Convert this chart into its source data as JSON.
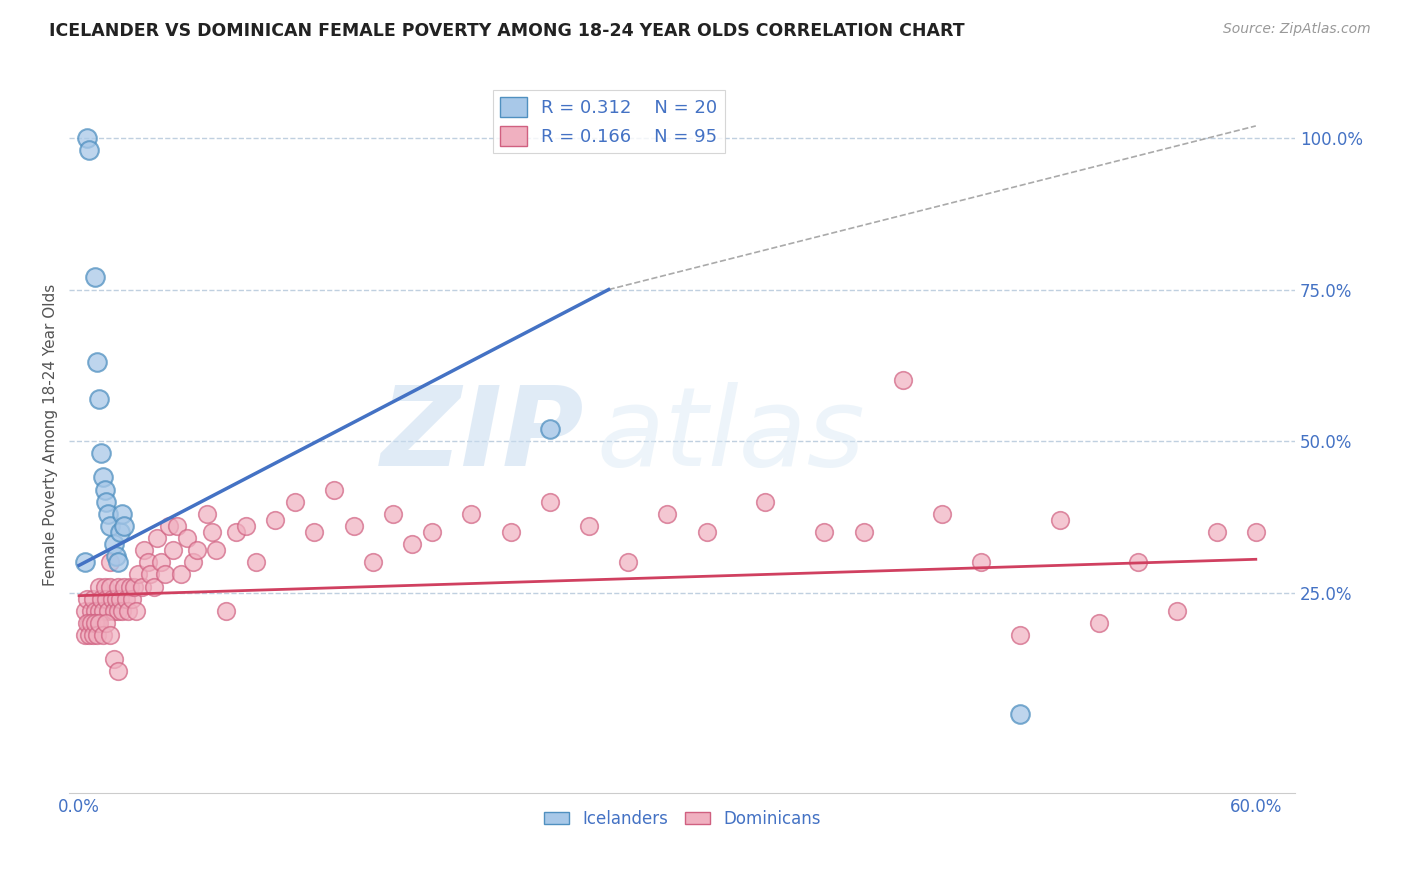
{
  "title": "ICELANDER VS DOMINICAN FEMALE POVERTY AMONG 18-24 YEAR OLDS CORRELATION CHART",
  "source": "Source: ZipAtlas.com",
  "ylabel": "Female Poverty Among 18-24 Year Olds",
  "xlim": [
    -0.005,
    0.62
  ],
  "ylim": [
    -0.08,
    1.1
  ],
  "xticks": [
    0.0,
    0.1,
    0.2,
    0.3,
    0.4,
    0.5,
    0.6
  ],
  "xticklabels": [
    "0.0%",
    "",
    "",
    "",
    "",
    "",
    "60.0%"
  ],
  "yticks_right": [
    0.25,
    0.5,
    0.75,
    1.0
  ],
  "ytick_right_labels": [
    "25.0%",
    "50.0%",
    "75.0%",
    "100.0%"
  ],
  "icelander_color": "#a8c8e8",
  "icelander_edge": "#5090c0",
  "dominican_color": "#f0b0c0",
  "dominican_edge": "#d06080",
  "trend_blue": "#4472c4",
  "trend_pink": "#d04060",
  "legend_R1": "R = 0.312",
  "legend_N1": "N = 20",
  "legend_R2": "R = 0.166",
  "legend_N2": "N = 95",
  "icelander_label": "Icelanders",
  "dominican_label": "Dominicans",
  "watermark_zip": "ZIP",
  "watermark_atlas": "atlas",
  "background_color": "#ffffff",
  "grid_color": "#c0d0e0",
  "icelanders_x": [
    0.003,
    0.004,
    0.005,
    0.008,
    0.009,
    0.01,
    0.011,
    0.012,
    0.013,
    0.014,
    0.015,
    0.016,
    0.018,
    0.019,
    0.02,
    0.021,
    0.022,
    0.023,
    0.24,
    0.48
  ],
  "icelanders_y": [
    0.3,
    1.0,
    0.98,
    0.77,
    0.63,
    0.57,
    0.48,
    0.44,
    0.42,
    0.4,
    0.38,
    0.36,
    0.33,
    0.31,
    0.3,
    0.35,
    0.38,
    0.36,
    0.52,
    0.05
  ],
  "dominicans_x": [
    0.003,
    0.004,
    0.005,
    0.006,
    0.007,
    0.008,
    0.009,
    0.01,
    0.01,
    0.011,
    0.012,
    0.013,
    0.014,
    0.015,
    0.016,
    0.016,
    0.017,
    0.018,
    0.019,
    0.02,
    0.02,
    0.021,
    0.022,
    0.023,
    0.024,
    0.025,
    0.026,
    0.027,
    0.028,
    0.029,
    0.03,
    0.032,
    0.033,
    0.035,
    0.036,
    0.038,
    0.04,
    0.042,
    0.044,
    0.046,
    0.048,
    0.05,
    0.052,
    0.055,
    0.058,
    0.06,
    0.065,
    0.068,
    0.07,
    0.075,
    0.08,
    0.085,
    0.09,
    0.1,
    0.11,
    0.12,
    0.13,
    0.14,
    0.15,
    0.16,
    0.17,
    0.18,
    0.2,
    0.22,
    0.24,
    0.26,
    0.28,
    0.3,
    0.32,
    0.35,
    0.38,
    0.4,
    0.42,
    0.44,
    0.46,
    0.48,
    0.5,
    0.52,
    0.54,
    0.56,
    0.58,
    0.6,
    0.003,
    0.004,
    0.005,
    0.006,
    0.007,
    0.008,
    0.009,
    0.01,
    0.012,
    0.014,
    0.016,
    0.018,
    0.02
  ],
  "dominicans_y": [
    0.22,
    0.24,
    0.2,
    0.22,
    0.24,
    0.22,
    0.2,
    0.26,
    0.22,
    0.24,
    0.22,
    0.26,
    0.24,
    0.22,
    0.26,
    0.3,
    0.24,
    0.22,
    0.24,
    0.22,
    0.26,
    0.24,
    0.22,
    0.26,
    0.24,
    0.22,
    0.26,
    0.24,
    0.26,
    0.22,
    0.28,
    0.26,
    0.32,
    0.3,
    0.28,
    0.26,
    0.34,
    0.3,
    0.28,
    0.36,
    0.32,
    0.36,
    0.28,
    0.34,
    0.3,
    0.32,
    0.38,
    0.35,
    0.32,
    0.22,
    0.35,
    0.36,
    0.3,
    0.37,
    0.4,
    0.35,
    0.42,
    0.36,
    0.3,
    0.38,
    0.33,
    0.35,
    0.38,
    0.35,
    0.4,
    0.36,
    0.3,
    0.38,
    0.35,
    0.4,
    0.35,
    0.35,
    0.6,
    0.38,
    0.3,
    0.18,
    0.37,
    0.2,
    0.3,
    0.22,
    0.35,
    0.35,
    0.18,
    0.2,
    0.18,
    0.2,
    0.18,
    0.2,
    0.18,
    0.2,
    0.18,
    0.2,
    0.18,
    0.14,
    0.12
  ],
  "blue_trend_x0": 0.0,
  "blue_trend_y0": 0.295,
  "blue_trend_x1": 0.27,
  "blue_trend_y1": 0.75,
  "pink_trend_x0": 0.0,
  "pink_trend_y0": 0.245,
  "pink_trend_x1": 0.6,
  "pink_trend_y1": 0.305,
  "ref_line_x0": 0.27,
  "ref_line_y0": 0.75,
  "ref_line_x1": 0.6,
  "ref_line_y1": 1.02
}
